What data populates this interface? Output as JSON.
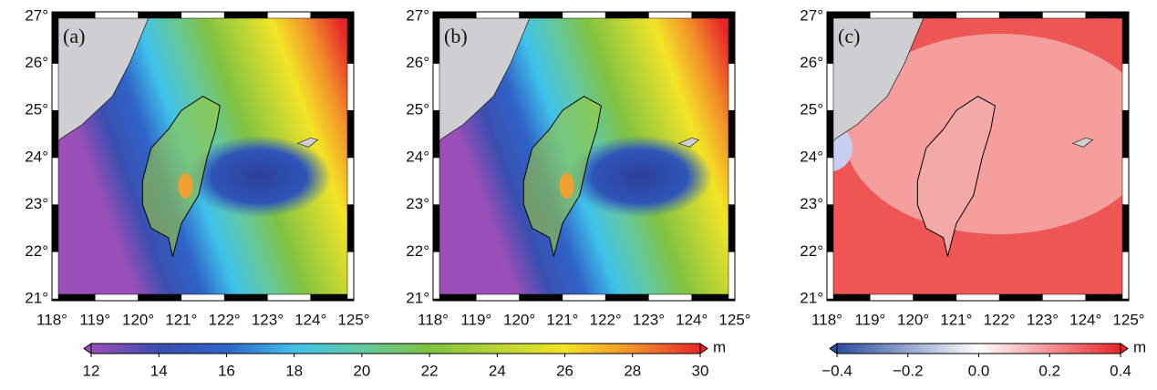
{
  "panels": [
    {
      "label": "(a)",
      "style": "field"
    },
    {
      "label": "(b)",
      "style": "field"
    },
    {
      "label": "(c)",
      "style": "diff"
    }
  ],
  "map_axes": {
    "xticks": [
      "118°",
      "119°",
      "120°",
      "121°",
      "122°",
      "123°",
      "124°",
      "125°"
    ],
    "yticks": [
      "21°",
      "22°",
      "23°",
      "24°",
      "25°",
      "26°",
      "27°"
    ]
  },
  "colorbars": [
    {
      "lim": [
        12,
        30
      ],
      "ticks": [
        12,
        14,
        16,
        18,
        20,
        22,
        24,
        26,
        28,
        30
      ],
      "unit": "m",
      "colors": [
        "#9b4fb8",
        "#3a4fb0",
        "#2f63c8",
        "#3fc2ea",
        "#63c9a0",
        "#80c240",
        "#b8d434",
        "#f4e426",
        "#f29029",
        "#e8262a"
      ]
    },
    {
      "lim": [
        -0.4,
        0.4
      ],
      "ticks": [
        {
          "value": -0.4,
          "label": "−0.4"
        },
        {
          "value": -0.2,
          "label": "−0.2"
        },
        {
          "value": 0,
          "label": "0.0"
        },
        0.2,
        0.4
      ],
      "unit": "m",
      "colors": [
        "#2c4ea0",
        "#ffffff",
        "#e8262a"
      ]
    }
  ]
}
